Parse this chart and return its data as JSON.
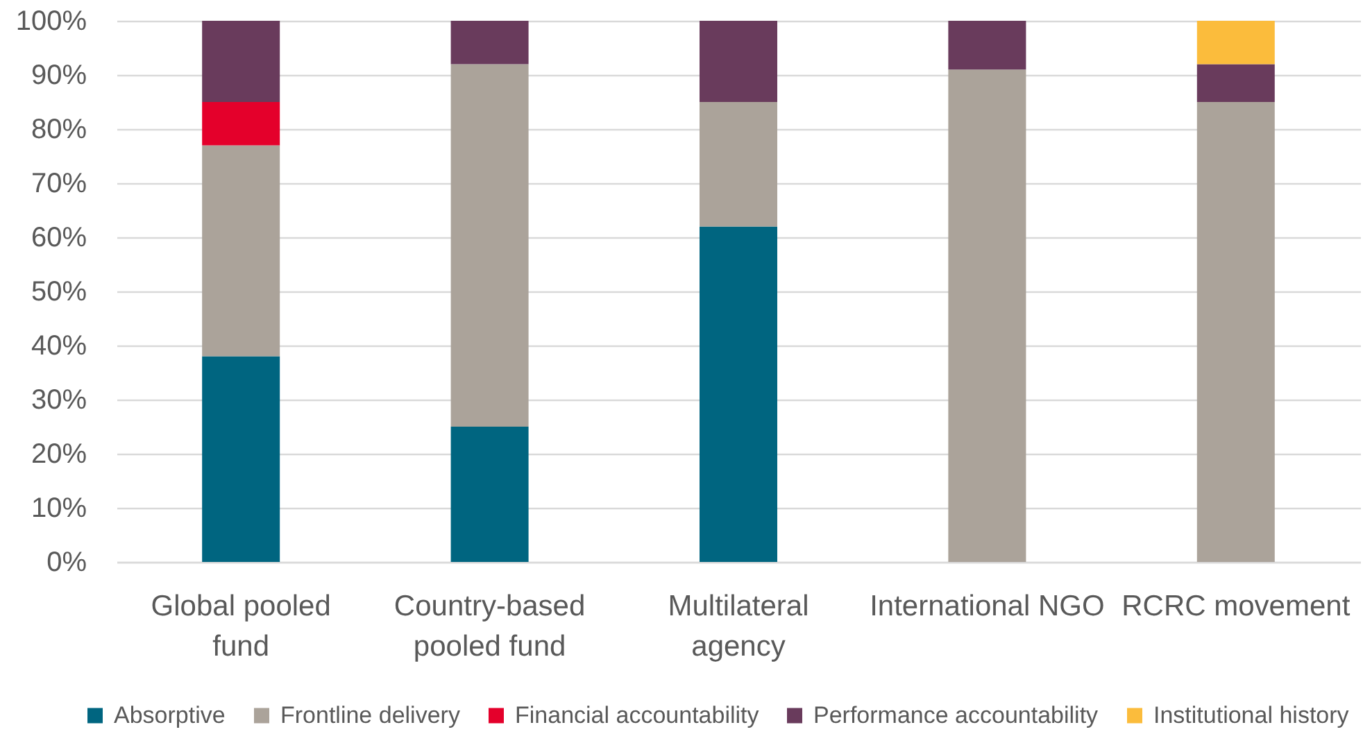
{
  "chart_data": {
    "type": "bar",
    "stacked": true,
    "categories": [
      "Global pooled fund",
      "Country-based pooled fund",
      "Multilateral agency",
      "International NGO",
      "RCRC movement"
    ],
    "series": [
      {
        "name": "Absorptive",
        "color": "#006580",
        "values": [
          38,
          25,
          62,
          null,
          null
        ]
      },
      {
        "name": "Frontline delivery",
        "color": "#aba39a",
        "values": [
          39,
          67,
          23,
          91,
          85
        ]
      },
      {
        "name": "Financial accountability",
        "color": "#e4002b",
        "values": [
          8,
          null,
          null,
          null,
          null
        ]
      },
      {
        "name": "Performance accountability",
        "color": "#693b5c",
        "values": [
          15,
          8,
          15,
          9,
          7
        ]
      },
      {
        "name": "Institutional history",
        "color": "#fbbc3c",
        "values": [
          null,
          null,
          null,
          null,
          8
        ]
      }
    ],
    "ylim": [
      0,
      100
    ],
    "yticks": [
      {
        "value": 0,
        "label": "0%"
      },
      {
        "value": 10,
        "label": "10%"
      },
      {
        "value": 20,
        "label": "20%"
      },
      {
        "value": 30,
        "label": "30%"
      },
      {
        "value": 40,
        "label": "40%"
      },
      {
        "value": 50,
        "label": "50%"
      },
      {
        "value": 60,
        "label": "60%"
      },
      {
        "value": 70,
        "label": "70%"
      },
      {
        "value": 80,
        "label": "80%"
      },
      {
        "value": 90,
        "label": "90%"
      },
      {
        "value": 100,
        "label": "100%"
      }
    ],
    "grid": "y",
    "legend": "bottom"
  }
}
